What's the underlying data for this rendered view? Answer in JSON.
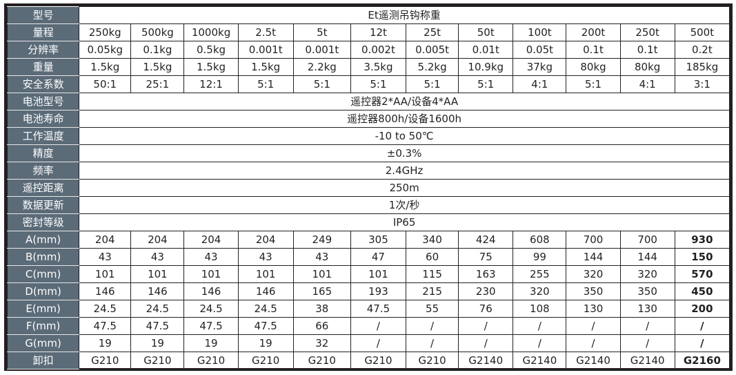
{
  "title_label": "型号",
  "title": "Et遥测吊钩称重",
  "rows": [
    {
      "label": "量程",
      "values": [
        "250kg",
        "500kg",
        "1000kg",
        "2.5t",
        "5t",
        "12t",
        "25t",
        "50t",
        "100t",
        "200t",
        "250t",
        "500t"
      ]
    },
    {
      "label": "分辨率",
      "values": [
        "0.05kg",
        "0.1kg",
        "0.5kg",
        "0.001t",
        "0.001t",
        "0.002t",
        "0.005t",
        "0.01t",
        "0.05t",
        "0.1t",
        "0.1t",
        "0.2t"
      ]
    },
    {
      "label": "重量",
      "values": [
        "1.5kg",
        "1.5kg",
        "1.5kg",
        "1.5kg",
        "2.2kg",
        "3.5kg",
        "5.2kg",
        "10.9kg",
        "37kg",
        "80kg",
        "80kg",
        "185kg"
      ]
    },
    {
      "label": "安全系数",
      "values": [
        "50:1",
        "25:1",
        "12:1",
        "5:1",
        "5:1",
        "5:1",
        "5:1",
        "5:1",
        "4:1",
        "5:1",
        "4:1",
        "3:1"
      ]
    },
    {
      "label": "电池型号",
      "span": "遥控器2*AA/设备4*AA"
    },
    {
      "label": "电池寿命",
      "span": "遥控器800h/设备1600h"
    },
    {
      "label": "工作温度",
      "span": "-10 to 50℃"
    },
    {
      "label": "精度",
      "span": "±0.3%"
    },
    {
      "label": "频率",
      "span": "2.4GHz"
    },
    {
      "label": "遥控距离",
      "span": "250m"
    },
    {
      "label": "数据更新",
      "span": "1次/秒"
    },
    {
      "label": "密封等级",
      "span": "IP65"
    },
    {
      "label": "A(mm)",
      "bold_last": true,
      "values": [
        "204",
        "204",
        "204",
        "204",
        "249",
        "305",
        "340",
        "424",
        "608",
        "700",
        "700",
        "930"
      ]
    },
    {
      "label": "B(mm)",
      "bold_last": true,
      "values": [
        "43",
        "43",
        "43",
        "43",
        "43",
        "47",
        "60",
        "75",
        "99",
        "144",
        "144",
        "150"
      ]
    },
    {
      "label": "C(mm)",
      "bold_last": true,
      "values": [
        "101",
        "101",
        "101",
        "101",
        "101",
        "101",
        "115",
        "163",
        "255",
        "320",
        "320",
        "570"
      ]
    },
    {
      "label": "D(mm)",
      "bold_last": true,
      "values": [
        "146",
        "146",
        "146",
        "146",
        "165",
        "193",
        "215",
        "230",
        "320",
        "350",
        "350",
        "450"
      ]
    },
    {
      "label": "E(mm)",
      "bold_last": true,
      "values": [
        "24.5",
        "24.5",
        "24.5",
        "24.5",
        "38",
        "47.5",
        "55",
        "76",
        "108",
        "130",
        "130",
        "200"
      ]
    },
    {
      "label": "F(mm)",
      "bold_last": true,
      "values": [
        "47.5",
        "47.5",
        "47.5",
        "47.5",
        "66",
        "/",
        "/",
        "/",
        "/",
        "/",
        "/",
        "/"
      ]
    },
    {
      "label": "G(mm)",
      "bold_last": true,
      "values": [
        "19",
        "19",
        "19",
        "19",
        "32",
        "/",
        "/",
        "/",
        "/",
        "/",
        "/",
        "/"
      ]
    },
    {
      "label": "卸扣",
      "bold_last": true,
      "values": [
        "G210",
        "G210",
        "G210",
        "G210",
        "G210",
        "G210",
        "G210",
        "G2140",
        "G2140",
        "G2140",
        "G2140",
        "G2160"
      ]
    }
  ]
}
